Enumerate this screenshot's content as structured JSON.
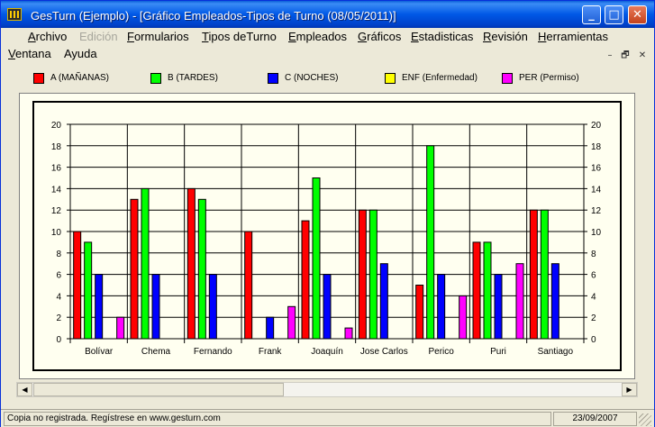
{
  "window": {
    "title": "GesTurn (Ejemplo)  -  [Gráfico Empleados-Tipos de Turno (08/05/2011)]",
    "icon": "app-icon",
    "buttons": {
      "minimize": "_",
      "maximize": "□",
      "close": "✕"
    }
  },
  "menu": {
    "items": [
      {
        "label": "Archivo",
        "ul": "A",
        "rest": "rchivo",
        "disabled": false
      },
      {
        "label": "Edición",
        "ul": "",
        "rest": "Edición",
        "disabled": true
      },
      {
        "label": "Formularios",
        "ul": "F",
        "rest": "ormularios",
        "disabled": false
      },
      {
        "label": "Tipos deTurno",
        "ul": "T",
        "rest": "ipos deTurno",
        "disabled": false
      },
      {
        "label": "Empleados",
        "ul": "E",
        "rest": "mpleados",
        "disabled": false
      },
      {
        "label": "Gráficos",
        "ul": "G",
        "rest": "ráficos",
        "disabled": false
      },
      {
        "label": "Estadisticas",
        "ul": "E",
        "rest": "stadisticas",
        "disabled": false
      },
      {
        "label": "Revisión",
        "ul": "R",
        "rest": "evisión",
        "disabled": false
      },
      {
        "label": "Herramientas",
        "ul": "H",
        "rest": "erramientas",
        "disabled": false
      },
      {
        "label": "Ventana",
        "ul": "V",
        "rest": "entana",
        "disabled": false
      },
      {
        "label": "Ayuda",
        "ul": "",
        "rest": "Ayuda",
        "disabled": false
      }
    ],
    "mdi_buttons": {
      "minimize": "–",
      "restore": "🗗",
      "close": "✕"
    }
  },
  "legend": [
    {
      "label": "A  (MAÑANAS)",
      "color": "#ff0000"
    },
    {
      "label": "B  (TARDES)",
      "color": "#00ff00"
    },
    {
      "label": "C  (NOCHES)",
      "color": "#0000ff"
    },
    {
      "label": "ENF  (Enfermedad)",
      "color": "#ffff00"
    },
    {
      "label": "PER  (Permiso)",
      "color": "#ff00ff"
    }
  ],
  "chart_data": {
    "type": "bar",
    "categories": [
      "Bolívar",
      "Chema",
      "Fernando",
      "Frank",
      "Joaquín",
      "Jose Carlos",
      "Perico",
      "Puri",
      "Santiago"
    ],
    "series": [
      {
        "name": "A  (MAÑANAS)",
        "color": "#ff0000",
        "values": [
          10,
          13,
          14,
          10,
          11,
          12,
          5,
          9,
          12
        ]
      },
      {
        "name": "B  (TARDES)",
        "color": "#00ff00",
        "values": [
          9,
          14,
          13,
          0,
          15,
          12,
          18,
          9,
          12
        ]
      },
      {
        "name": "C  (NOCHES)",
        "color": "#0000ff",
        "values": [
          6,
          6,
          6,
          2,
          6,
          7,
          6,
          6,
          7
        ]
      },
      {
        "name": "ENF  (Enfermedad)",
        "color": "#ffff00",
        "values": [
          0,
          0,
          0,
          0,
          0,
          0,
          0,
          0,
          0
        ]
      },
      {
        "name": "PER  (Permiso)",
        "color": "#ff00ff",
        "values": [
          2,
          0,
          0,
          3,
          1,
          0,
          4,
          7,
          0
        ]
      }
    ],
    "ylim": [
      0,
      20
    ],
    "yticks": [
      0,
      2,
      4,
      6,
      8,
      10,
      12,
      14,
      16,
      18,
      20
    ],
    "grid": true,
    "right_axis": true,
    "background": "#fffff0"
  },
  "scrollbar": {
    "left_arrow": "◀",
    "right_arrow": "▶"
  },
  "status": {
    "message": "Copia no registrada. Regístrese en www.gesturn.com",
    "date": "23/09/2007"
  }
}
